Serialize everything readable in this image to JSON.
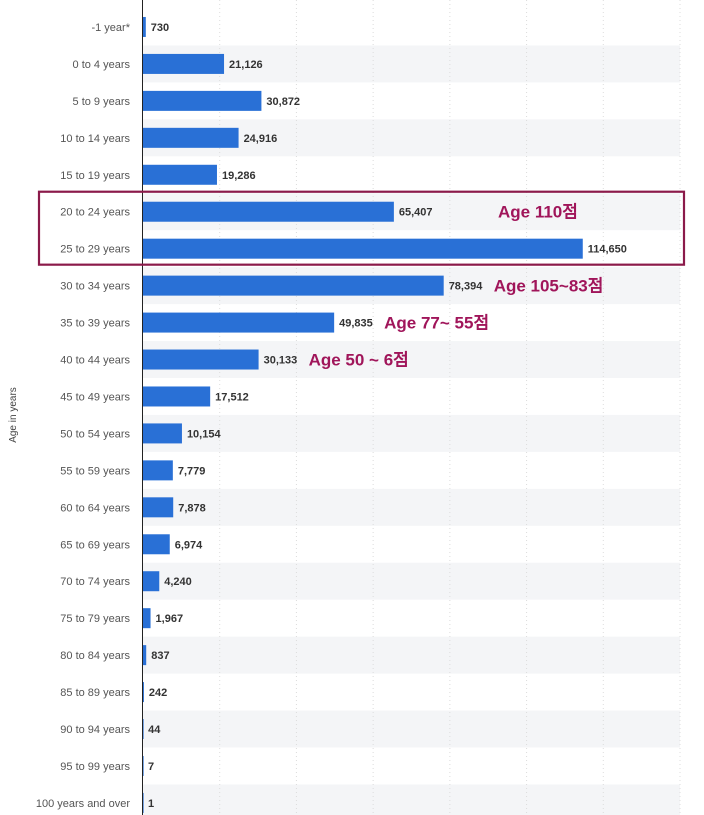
{
  "chart_data": {
    "type": "bar",
    "orientation": "horizontal",
    "ylabel": "Age in years",
    "categories": [
      "-1 year*",
      "0 to 4 years",
      "5 to 9 years",
      "10 to 14 years",
      "15 to 19 years",
      "20 to 24 years",
      "25 to 29 years",
      "30 to 34 years",
      "35 to 39 years",
      "40 to 44 years",
      "45 to 49 years",
      "50 to 54 years",
      "55 to 59 years",
      "60 to 64 years",
      "65 to 69 years",
      "70 to 74 years",
      "75 to 79 years",
      "80 to 84 years",
      "85 to 89 years",
      "90 to 94 years",
      "95 to 99 years",
      "100 years and over"
    ],
    "values": [
      730,
      21126,
      30872,
      24916,
      19286,
      65407,
      114650,
      78394,
      49835,
      30133,
      17512,
      10154,
      7779,
      7878,
      6974,
      4240,
      1967,
      837,
      242,
      44,
      7,
      1
    ],
    "value_labels": [
      "730",
      "21,126",
      "30,872",
      "24,916",
      "19,286",
      "65,407",
      "114,650",
      "78,394",
      "49,835",
      "30,133",
      "17,512",
      "10,154",
      "7,779",
      "7,878",
      "6,974",
      "4,240",
      "1,967",
      "837",
      "242",
      "44",
      "7",
      "1"
    ],
    "xlim": [
      0,
      140000
    ],
    "grid": true,
    "bar_color": "#2970d6",
    "annotations": [
      {
        "text": "Age 110점",
        "category_index": 5,
        "color": "#a0155a"
      },
      {
        "text": "Age 105~83점",
        "category_index": 7,
        "color": "#a0155a"
      },
      {
        "text": "Age 77~ 55점",
        "category_index": 8,
        "color": "#a0155a"
      },
      {
        "text": "Age 50 ~ 6점",
        "category_index": 9,
        "color": "#a0155a"
      }
    ],
    "highlight_box": {
      "from_category": 5,
      "to_category": 6,
      "color": "#8b1a4a"
    }
  }
}
